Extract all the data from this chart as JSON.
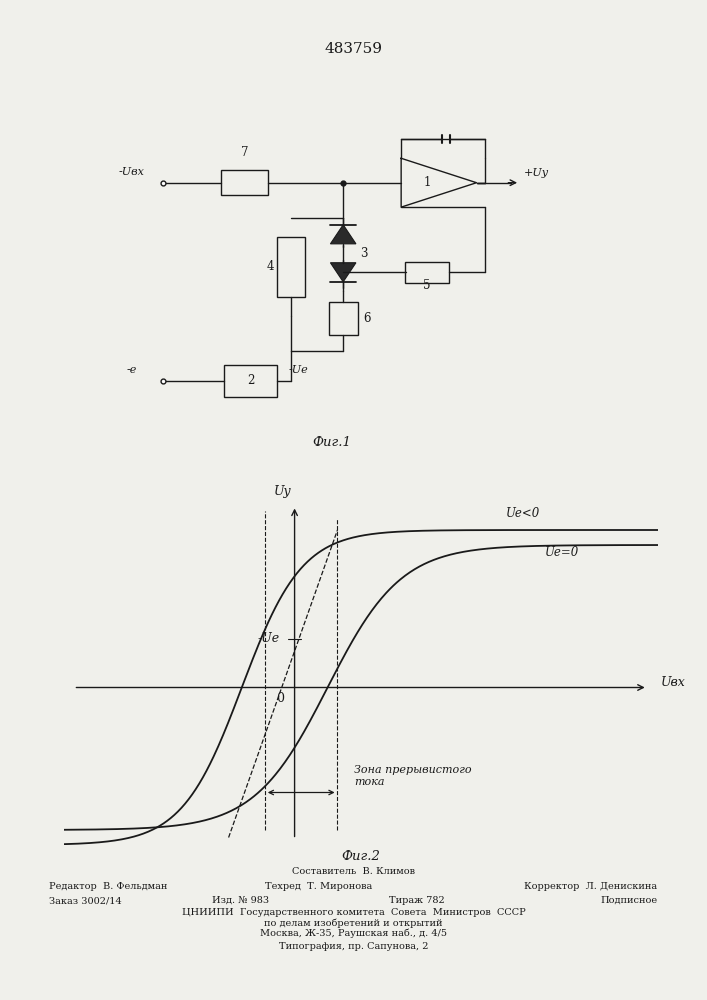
{
  "patent_number": "483759",
  "fig1_caption": "Фиг.1",
  "fig2_caption": "Фиг.2",
  "label_neg_ubx": "-Uвх",
  "label_neg_e": "-e",
  "label_neg_ue_out": "-Uе",
  "label_plus_uy": "+Uу",
  "fig2_uy": "Uу",
  "fig2_ubx": "Uвх",
  "fig2_ue_neg": "Uе<0",
  "fig2_ue_zero": "Uе=0",
  "fig2_neg_ue": "-Uе",
  "fig2_zero": "0",
  "fig2_zone": "Зона прерывистого\nтока",
  "footer_sostavitel": "Составитель  В. Климов",
  "footer_editor": "Редактор  В. Фельдман",
  "footer_tech": "Техред  Т. Миронова",
  "footer_corrector": "Корректор  Л. Денискина",
  "footer_order": "Заказ 3002/14",
  "footer_izd": "Изд. № 983",
  "footer_tirazh": "Тираж 782",
  "footer_podp": "Подписное",
  "footer_tsnipi": "ЦНИИПИ  Государственного комитета  Совета  Министров  СССР",
  "footer_po_delam": "по делам изобретений и открытий",
  "footer_moskva": "Москва, Ж-35, Раушская наб., д. 4/5",
  "footer_tipografia": "Типография, пр. Сапунова, 2",
  "bg_color": "#f0f0eb",
  "line_color": "#1a1a1a",
  "text_color": "#1a1a1a"
}
